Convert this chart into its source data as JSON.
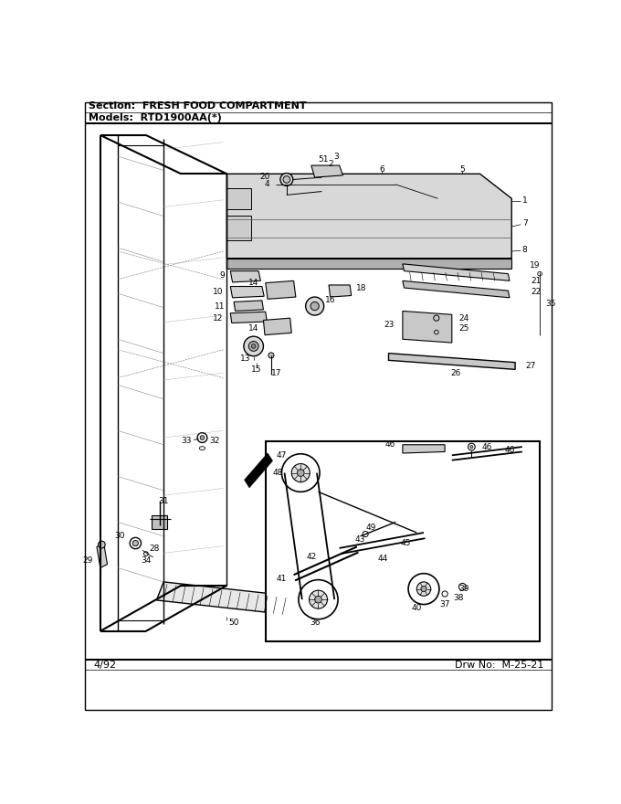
{
  "title_section": "Section:  FRESH FOOD COMPARTMENT",
  "title_models": "Models:  RTD1900AA(*)",
  "footer_left": "4/92",
  "footer_right": "Drw No:  M-25-21",
  "bg_color": "#ffffff",
  "line_color": "#000000",
  "text_color": "#000000"
}
